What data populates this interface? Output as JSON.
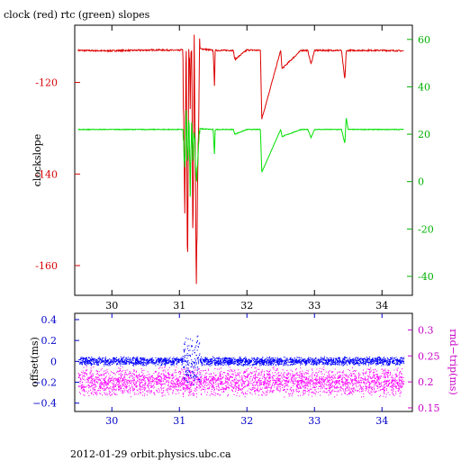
{
  "title": "clock (red) rtc (green) slopes",
  "footer": "2012-01-29  orbit.physics.ubc.ca",
  "colors": {
    "clock": "#dd0000",
    "rtc": "#00e000",
    "offset": "#0000ff",
    "rndtrip": "#ff00ff",
    "tick_blue": "#0000c8",
    "tick_magenta": "#c800c8",
    "tick_red": "#d40000",
    "tick_green": "#00b000"
  },
  "chart_data": [
    {
      "type": "line",
      "title": "clock (red) rtc (green) slopes",
      "xlabel": "",
      "ylabel": "clockslope",
      "xlim": [
        29.45,
        34.45
      ],
      "xticks": [
        30,
        31,
        32,
        33,
        34
      ],
      "xtick_labels": [
        "30",
        "31",
        "32",
        "33",
        "34"
      ],
      "ylim": [
        -166.5,
        -107.5
      ],
      "yticks": [
        -120,
        -140,
        -160
      ],
      "ytick_labels": [
        "-120",
        "-140",
        "-160"
      ],
      "y2lim": [
        -48,
        66
      ],
      "y2ticks": [
        60,
        40,
        20,
        0,
        -20,
        -40
      ],
      "y2tick_labels": [
        "60",
        "40",
        "20",
        "0",
        "-20",
        "-40"
      ],
      "series": [
        {
          "axis": "left",
          "base": -113,
          "noise": 0.15,
          "x": [
            29.5,
            29.9,
            30.3,
            30.7,
            31.0,
            31.05,
            31.08,
            31.1,
            31.12,
            31.14,
            31.16,
            31.18,
            31.2,
            31.22,
            31.25,
            31.3,
            31.5,
            31.52,
            31.53,
            31.8,
            31.82,
            32.0,
            32.2,
            32.22,
            32.5,
            32.52,
            32.8,
            32.9,
            32.95,
            33.0,
            33.4,
            33.45,
            33.47,
            33.5,
            34.0,
            34.32
          ],
          "y": [
            -113,
            -113.1,
            -113,
            -112.9,
            -113,
            -112.8,
            -150,
            -110,
            -164,
            -110,
            -125,
            -108,
            -155,
            -110,
            -163,
            -112.6,
            -113,
            -121,
            -113,
            -113,
            -115,
            -112.9,
            -113,
            -128,
            -113,
            -117,
            -113,
            -113,
            -116,
            -113,
            -113,
            -119.5,
            -113.2,
            -113,
            -113,
            -113.1
          ]
        },
        {
          "axis": "right",
          "base": 22,
          "noise": 0.15,
          "x": [
            29.5,
            29.9,
            30.3,
            30.7,
            31.0,
            31.05,
            31.08,
            31.1,
            31.12,
            31.14,
            31.16,
            31.18,
            31.2,
            31.22,
            31.25,
            31.3,
            31.5,
            31.52,
            31.53,
            31.8,
            31.82,
            32.0,
            32.2,
            32.22,
            32.5,
            32.52,
            32.8,
            32.9,
            32.95,
            33.0,
            33.4,
            33.45,
            33.47,
            33.5,
            34.0,
            34.32
          ],
          "y": [
            22,
            22,
            22,
            22,
            22,
            22,
            5,
            30,
            5,
            28,
            -5,
            25,
            10,
            24,
            0,
            22.3,
            22,
            11,
            22,
            22,
            20,
            22,
            22,
            4,
            22,
            19,
            22,
            22,
            18.5,
            22,
            22,
            16,
            27,
            22,
            22,
            22
          ]
        }
      ]
    },
    {
      "type": "scatter",
      "xlabel": "",
      "ylabel": "offset(ms)",
      "y2label": "rnd−trip(ms)",
      "xlim": [
        29.45,
        34.45
      ],
      "xticks": [
        30,
        31,
        32,
        33,
        34
      ],
      "xtick_labels": [
        "30",
        "31",
        "32",
        "33",
        "34"
      ],
      "ylim": [
        -0.48,
        0.46
      ],
      "yticks": [
        0.4,
        0.2,
        0,
        -0.2,
        -0.4
      ],
      "ytick_labels": [
        "0.4",
        "0.2",
        "0",
        "−0.2",
        "−0.4"
      ],
      "y2lim": [
        0.143,
        0.332
      ],
      "y2ticks": [
        0.3,
        0.25,
        0.2,
        0.15
      ],
      "y2tick_labels": [
        "0.3",
        "0.25",
        "0.2",
        "0.15"
      ],
      "series": [
        {
          "axis": "left",
          "x": [
            29.5,
            30.0,
            30.5,
            31.0,
            31.1,
            31.3,
            32.0,
            32.5,
            33.0,
            33.5,
            34.0,
            34.32
          ],
          "y": [
            0.0,
            0.0,
            0.0,
            0.0,
            0.02,
            0.0,
            0.0,
            0.0,
            0.0,
            0.0,
            0.0,
            0.0
          ],
          "spread": 0.045
        },
        {
          "axis": "right",
          "x": [
            29.5,
            30.0,
            30.5,
            31.0,
            31.5,
            32.0,
            32.5,
            33.0,
            33.5,
            34.0,
            34.32
          ],
          "y": [
            0.2,
            0.2,
            0.2,
            0.2,
            0.2,
            0.2,
            0.2,
            0.2,
            0.2,
            0.2,
            0.2
          ],
          "spread": 0.03
        }
      ]
    }
  ]
}
